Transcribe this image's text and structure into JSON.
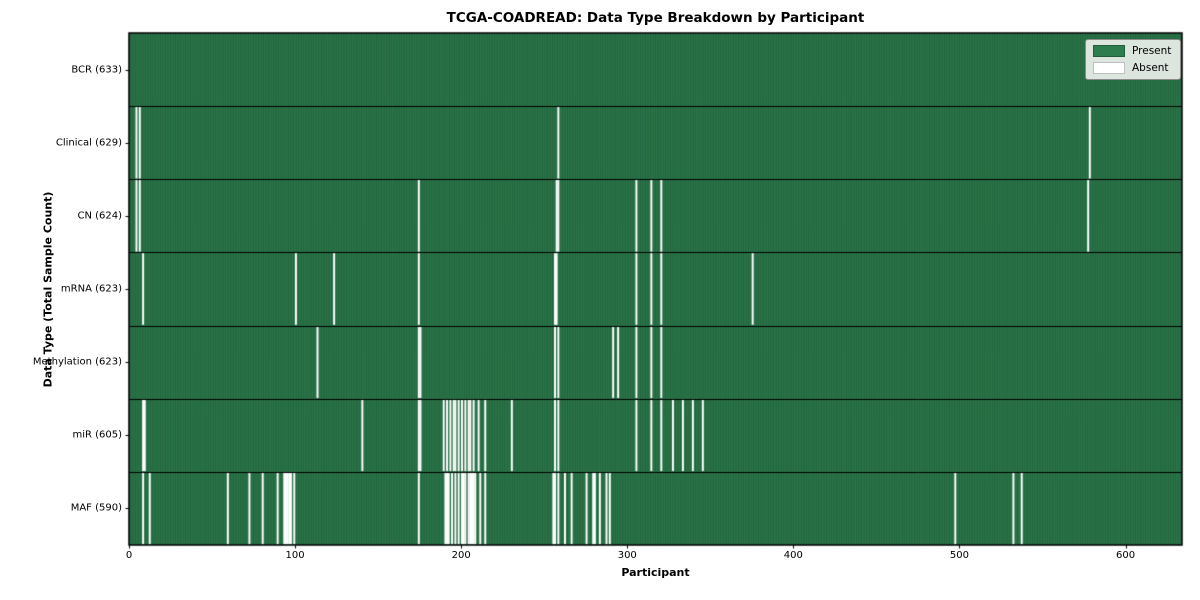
{
  "chart_data": {
    "type": "heatmap",
    "title": "TCGA-COADREAD: Data Type Breakdown by Participant",
    "xlabel": "Participant",
    "ylabel": "Data Type (Total Sample Count)",
    "n_participants": 633,
    "x_ticks": [
      0,
      100,
      200,
      300,
      400,
      500,
      600
    ],
    "xlim": [
      0,
      634
    ],
    "legend": [
      {
        "label": "Present",
        "color": "#2e7d4e"
      },
      {
        "label": "Absent",
        "color": "#ffffff"
      }
    ],
    "colors": {
      "present": "#2e7d4e",
      "absent": "#ffffff",
      "bar_edge": "rgba(12,38,22,0.55)",
      "row_divider": "#000000"
    },
    "rows": [
      {
        "label": "BCR (633)",
        "data_type": "BCR",
        "count": 633,
        "absent": []
      },
      {
        "label": "Clinical (629)",
        "data_type": "Clinical",
        "count": 629,
        "absent": [
          4,
          6,
          258,
          578
        ]
      },
      {
        "label": "CN (624)",
        "data_type": "CN",
        "count": 624,
        "absent": [
          4,
          6,
          174,
          257,
          258,
          305,
          314,
          320,
          577
        ]
      },
      {
        "label": "mRNA (623)",
        "data_type": "mRNA",
        "count": 623,
        "absent": [
          8,
          100,
          123,
          174,
          256,
          257,
          305,
          314,
          320,
          375
        ]
      },
      {
        "label": "Methylation (623)",
        "data_type": "Methylation",
        "count": 623,
        "absent": [
          113,
          174,
          175,
          256,
          258,
          291,
          294,
          305,
          314,
          320
        ]
      },
      {
        "label": "miR (605)",
        "data_type": "miR",
        "count": 605,
        "absent": [
          8,
          9,
          140,
          174,
          175,
          189,
          191,
          193,
          195,
          196,
          198,
          200,
          202,
          204,
          205,
          207,
          210,
          214,
          230,
          256,
          258,
          305,
          314,
          320,
          327,
          333,
          339,
          345
        ]
      },
      {
        "label": "MAF (590)",
        "data_type": "MAF",
        "count": 590,
        "absent": [
          8,
          12,
          59,
          72,
          80,
          89,
          93,
          94,
          95,
          96,
          97,
          99,
          174,
          190,
          191,
          192,
          194,
          196,
          198,
          200,
          201,
          202,
          204,
          205,
          206,
          207,
          208,
          211,
          214,
          255,
          256,
          258,
          262,
          266,
          275,
          279,
          280,
          283,
          287,
          289,
          497,
          532,
          537
        ]
      }
    ]
  }
}
